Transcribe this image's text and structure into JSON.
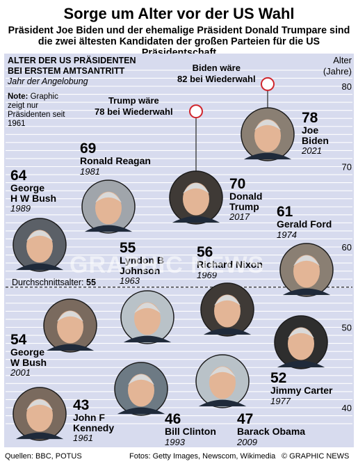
{
  "header": {
    "title": "Sorge um Alter vor der US Wahl",
    "subtitle": "Präsident Joe Biden und der ehemalige Präsident Donald Trumpare sind die zwei ältesten Kandidaten der großen Parteien für die US Präsidentschaft"
  },
  "panel": {
    "heading_line1": "ALTER DER US PRÄSIDENTEN",
    "heading_line2": "BEI ERSTEM AMTSANTRITT",
    "subheading": "Jahr der Angelobung",
    "note_label": "Note:",
    "note_text": "Graphic zeigt nur Präsidenten seit 1961",
    "avg_label": "Durchschnittsalter:",
    "avg_value": "55",
    "axis_unit_line1": "Alter",
    "axis_unit_line2": "(Jahre)"
  },
  "callouts": {
    "biden": {
      "line1": "Biden wäre",
      "line2": "82 bei Wiederwahl"
    },
    "trump": {
      "line1": "Trump wäre",
      "line2": "78 bei Wiederwahl"
    }
  },
  "watermark": "GRAPHIC NEWS",
  "footer": {
    "sources": "Quellen: BBC, POTUS",
    "photos": "Fotos: Getty Images, Newscom, Wikimedia",
    "credit": "© GRAPHIC NEWS"
  },
  "colors": {
    "panel_bg": "#d7dbee",
    "gridline": "#ffffff",
    "marker": "#d0262d",
    "avg_line": "#4a4a4a",
    "title_text": "#000000"
  },
  "chart_data": {
    "type": "scatter",
    "title": "ALTER DER US PRÄSIDENTEN BEI ERSTEM AMTSANTRITT",
    "ylabel": "Alter (Jahre)",
    "ylim": [
      38,
      82
    ],
    "yticks": [
      40,
      50,
      60,
      70,
      80
    ],
    "grid": true,
    "average": 55,
    "reelection": [
      {
        "name": "Biden",
        "value": 82
      },
      {
        "name": "Trump",
        "value": 78
      }
    ],
    "points": [
      {
        "name": "John F Kennedy",
        "name_lines": [
          "John F",
          "Kennedy"
        ],
        "age": 43,
        "year": "1961",
        "icon": "kennedy-portrait"
      },
      {
        "name": "Lyndon B Johnson",
        "name_lines": [
          "Lyndon B",
          "Johnson"
        ],
        "age": 55,
        "year": "1963",
        "icon": "johnson-portrait"
      },
      {
        "name": "Richard Nixon",
        "name_lines": [
          "Richard Nixon"
        ],
        "age": 56,
        "year": "1969",
        "icon": "nixon-portrait"
      },
      {
        "name": "Gerald Ford",
        "name_lines": [
          "Gerald Ford"
        ],
        "age": 61,
        "year": "1974",
        "icon": "ford-portrait"
      },
      {
        "name": "Jimmy Carter",
        "name_lines": [
          "Jimmy Carter"
        ],
        "age": 52,
        "year": "1977",
        "icon": "carter-portrait"
      },
      {
        "name": "Ronald Reagan",
        "name_lines": [
          "Ronald Reagan"
        ],
        "age": 69,
        "year": "1981",
        "icon": "reagan-portrait"
      },
      {
        "name": "George H W Bush",
        "name_lines": [
          "George",
          "H W Bush"
        ],
        "age": 64,
        "year": "1989",
        "icon": "bush-senior-portrait"
      },
      {
        "name": "Bill Clinton",
        "name_lines": [
          "Bill Clinton"
        ],
        "age": 46,
        "year": "1993",
        "icon": "clinton-portrait"
      },
      {
        "name": "George W Bush",
        "name_lines": [
          "George",
          "W Bush"
        ],
        "age": 54,
        "year": "2001",
        "icon": "bush-junior-portrait"
      },
      {
        "name": "Barack Obama",
        "name_lines": [
          "Barack Obama"
        ],
        "age": 47,
        "year": "2009",
        "icon": "obama-portrait"
      },
      {
        "name": "Donald Trump",
        "name_lines": [
          "Donald",
          "Trump"
        ],
        "age": 70,
        "year": "2017",
        "icon": "trump-portrait"
      },
      {
        "name": "Joe Biden",
        "name_lines": [
          "Joe",
          "Biden"
        ],
        "age": 78,
        "year": "2021",
        "icon": "biden-portrait"
      }
    ]
  }
}
